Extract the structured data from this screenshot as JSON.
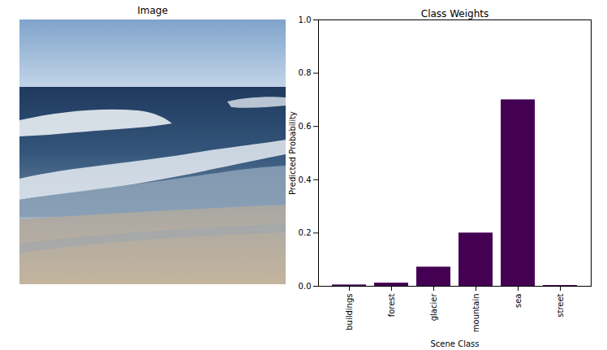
{
  "image_panel": {
    "title": "Image"
  },
  "chart_data": {
    "type": "bar",
    "title": "Class Weights",
    "x_label": "Scene Class",
    "y_label": "Predicted Probability",
    "categories": [
      "buildings",
      "forest",
      "glacier",
      "mountain",
      "sea",
      "street"
    ],
    "values": [
      0.005,
      0.012,
      0.072,
      0.2,
      0.7,
      0.003
    ],
    "color": "#440154",
    "ylim": [
      0,
      1
    ],
    "yticks": [
      {
        "value": 0,
        "label": "0.0"
      },
      0.2,
      0.4,
      0.6,
      0.8,
      {
        "value": 1,
        "label": "1.0"
      }
    ],
    "grid": false
  }
}
